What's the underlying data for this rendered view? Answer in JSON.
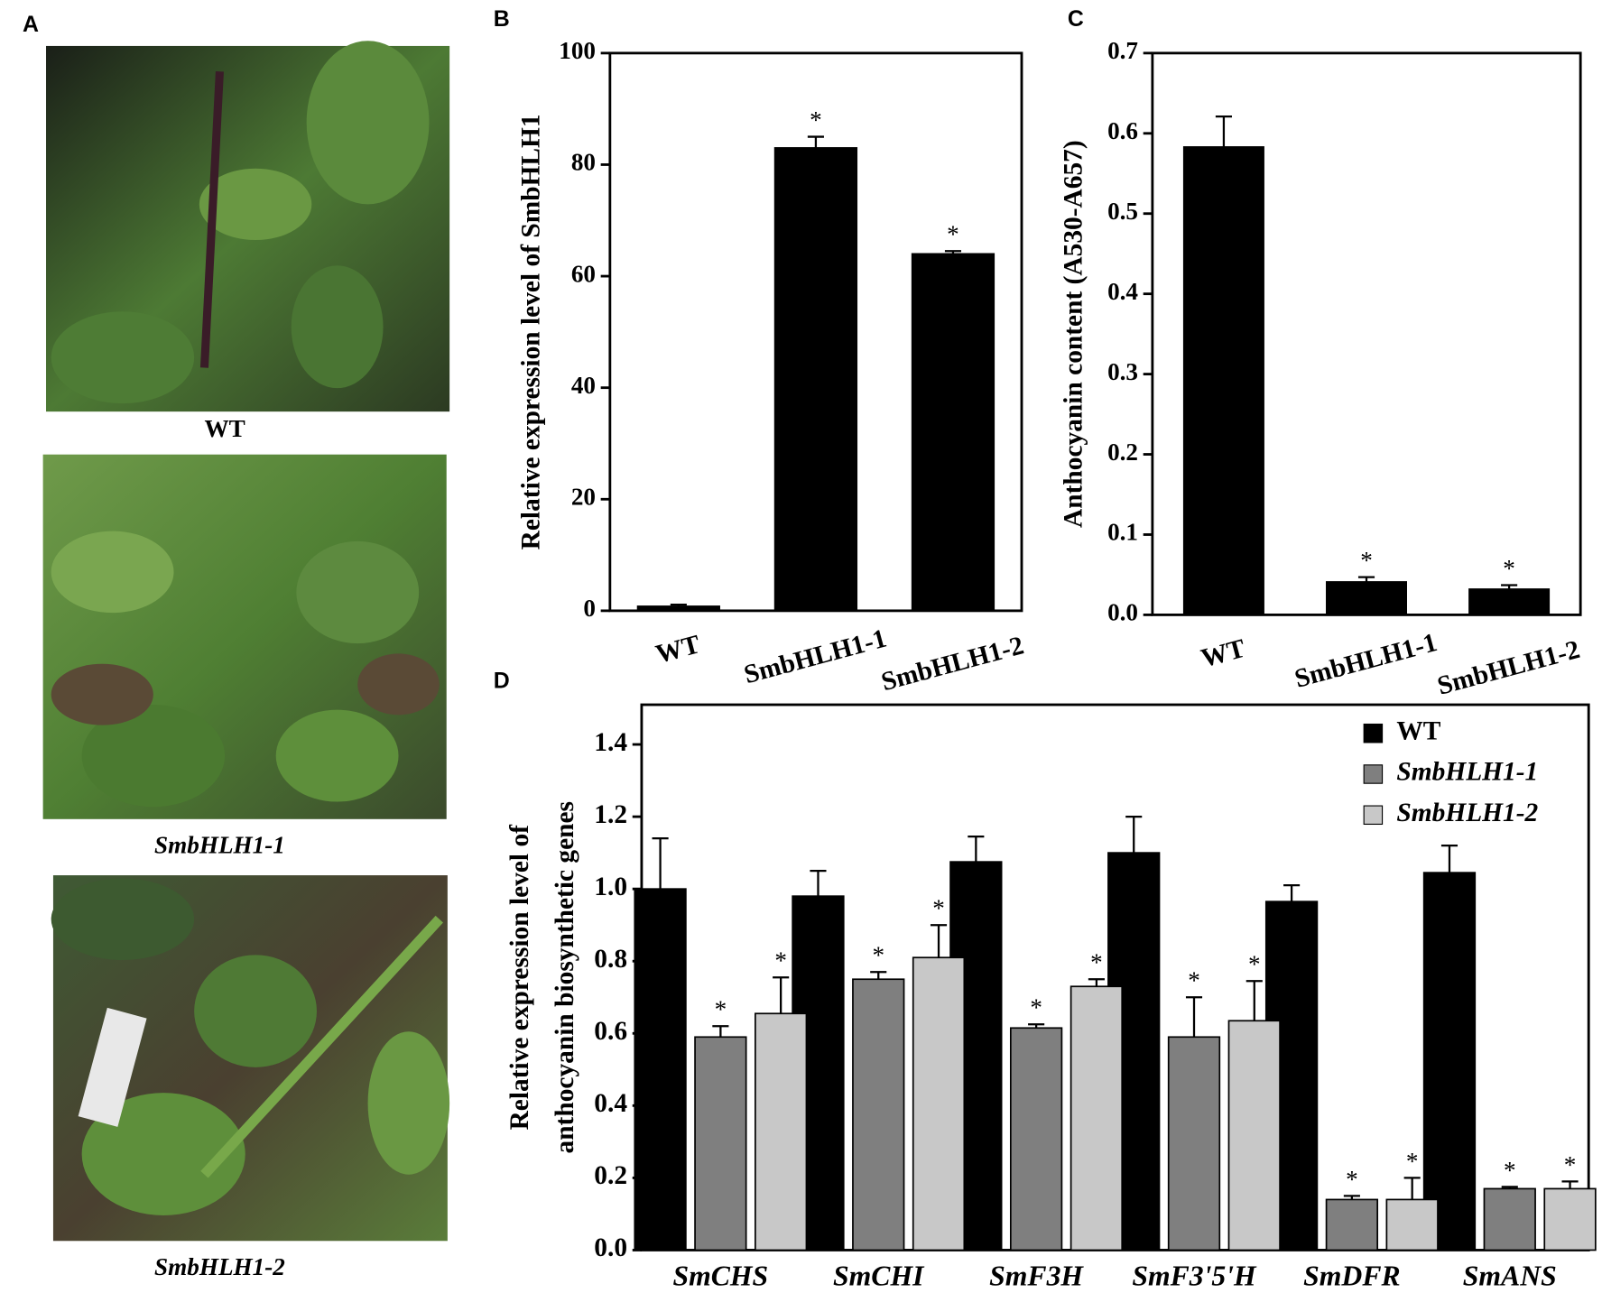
{
  "photos": {
    "panel_label": "A",
    "captions": [
      "WT",
      "SmbHLH1-1",
      "SmbHLH1-2"
    ]
  },
  "chart_data": [
    {
      "type": "bar",
      "panel_label": "B",
      "y_label": "Relative expression level of SmbHLH1",
      "categories": [
        "WT",
        "SmbHLH1-1",
        "SmbHLH1-2"
      ],
      "values": [
        0.8,
        83,
        64
      ],
      "errors": [
        0.3,
        2,
        0.5
      ],
      "markers": [
        null,
        "*",
        "*"
      ],
      "color": "#000000",
      "ylim": [
        0,
        100
      ],
      "yticks": [
        0,
        20,
        40,
        60,
        80,
        100
      ]
    },
    {
      "type": "bar",
      "panel_label": "C",
      "y_label": "Anthocyanin content (A530-A657)",
      "categories": [
        "WT",
        "SmbHLH1-1",
        "SmbHLH1-2"
      ],
      "values": [
        0.583,
        0.041,
        0.032
      ],
      "errors": [
        0.038,
        0.006,
        0.005
      ],
      "markers": [
        null,
        "*",
        "*"
      ],
      "color": "#000000",
      "ylim": [
        0,
        0.7
      ],
      "yticks": [
        {
          "value": 0,
          "label": "0.0"
        },
        0.1,
        0.2,
        0.3,
        0.4,
        0.5,
        0.6,
        0.7
      ]
    },
    {
      "type": "grouped_bar",
      "panel_label": "D",
      "y_label": [
        "Relative expression level of",
        "anthocyanin biosynthetic genes"
      ],
      "categories": [
        "SmCHS",
        "SmCHI",
        "SmF3H",
        "SmF3'5'H",
        "SmDFR",
        "SmANS"
      ],
      "series": [
        {
          "name": "WT",
          "color": "#000000",
          "values": [
            1.0,
            0.98,
            1.075,
            1.1,
            0.965,
            1.045
          ],
          "errors": [
            0.14,
            0.07,
            0.07,
            0.1,
            0.045,
            0.075
          ],
          "markers": [
            null,
            null,
            null,
            null,
            null,
            null
          ]
        },
        {
          "name": "SmbHLH1-1",
          "color": "#7f7f7f",
          "values": [
            0.59,
            0.75,
            0.615,
            0.59,
            0.14,
            0.17
          ],
          "errors": [
            0.03,
            0.02,
            0.01,
            0.11,
            0.01,
            0.005
          ],
          "markers": [
            "*",
            "*",
            "*",
            "*",
            "*",
            "*"
          ]
        },
        {
          "name": "SmbHLH1-2",
          "color": "#c8c8c8",
          "values": [
            0.655,
            0.81,
            0.73,
            0.635,
            0.14,
            0.17
          ],
          "errors": [
            0.1,
            0.09,
            0.02,
            0.11,
            0.06,
            0.02
          ],
          "markers": [
            "*",
            "*",
            "*",
            "*",
            "*",
            "*"
          ]
        }
      ],
      "legend": "upper right",
      "ylim": [
        0,
        1.51
      ],
      "yticks": [
        {
          "value": 0,
          "label": "0.0"
        },
        0.2,
        0.4,
        0.6,
        0.8,
        {
          "value": 1,
          "label": "1.0"
        },
        1.2,
        1.4
      ]
    }
  ]
}
